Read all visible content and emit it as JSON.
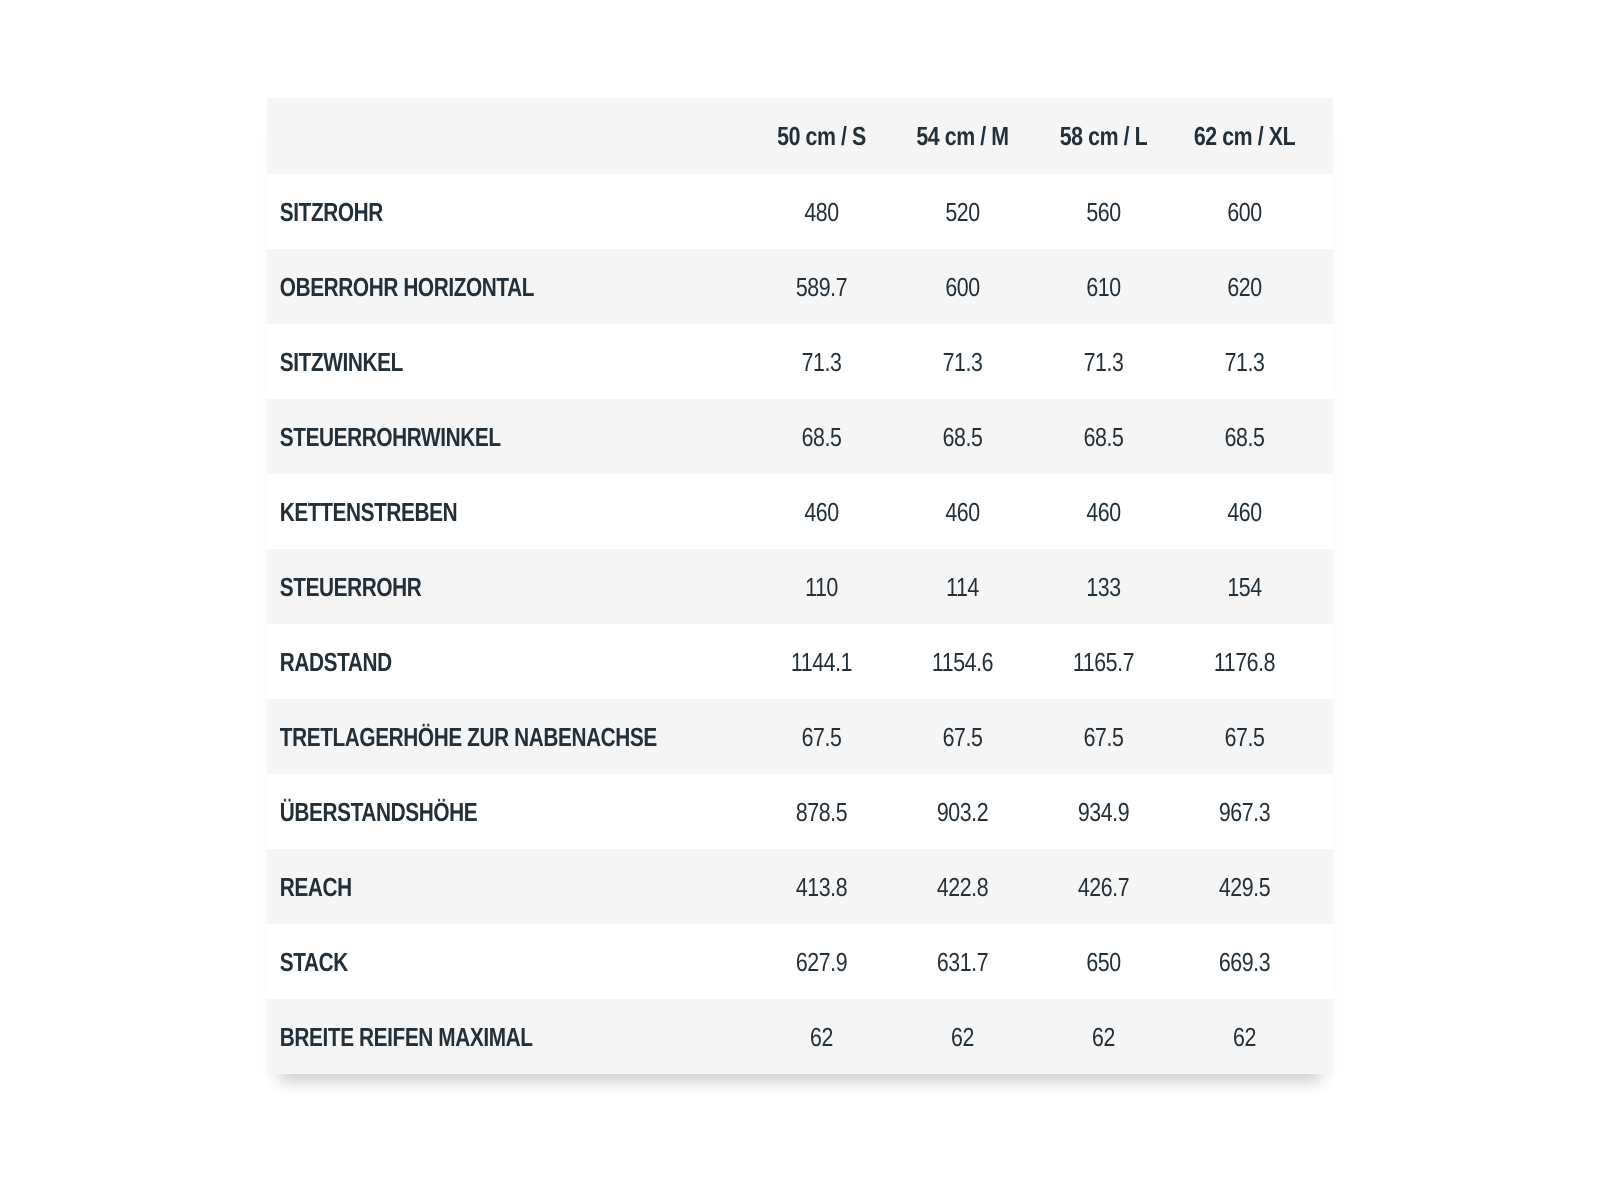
{
  "chart_data": {
    "type": "table",
    "title": "",
    "columns": [
      "50 cm / S",
      "54 cm / M",
      "58 cm / L",
      "62 cm / XL"
    ],
    "rows": [
      {
        "label": "SITZROHR",
        "values": [
          "480",
          "520",
          "560",
          "600"
        ]
      },
      {
        "label": "OBERROHR HORIZONTAL",
        "values": [
          "589.7",
          "600",
          "610",
          "620"
        ]
      },
      {
        "label": "SITZWINKEL",
        "values": [
          "71.3",
          "71.3",
          "71.3",
          "71.3"
        ]
      },
      {
        "label": "STEUERROHRWINKEL",
        "values": [
          "68.5",
          "68.5",
          "68.5",
          "68.5"
        ]
      },
      {
        "label": "KETTENSTREBEN",
        "values": [
          "460",
          "460",
          "460",
          "460"
        ]
      },
      {
        "label": "STEUERROHR",
        "values": [
          "110",
          "114",
          "133",
          "154"
        ]
      },
      {
        "label": "RADSTAND",
        "values": [
          "1144.1",
          "1154.6",
          "1165.7",
          "1176.8"
        ]
      },
      {
        "label": "TRETLAGERHÖHE ZUR NABENACHSE",
        "values": [
          "67.5",
          "67.5",
          "67.5",
          "67.5"
        ]
      },
      {
        "label": "ÜBERSTANDSHÖHE",
        "values": [
          "878.5",
          "903.2",
          "934.9",
          "967.3"
        ]
      },
      {
        "label": "REACH",
        "values": [
          "413.8",
          "422.8",
          "426.7",
          "429.5"
        ]
      },
      {
        "label": "STACK",
        "values": [
          "627.9",
          "631.7",
          "650",
          "669.3"
        ]
      },
      {
        "label": "BREITE REIFEN MAXIMAL",
        "values": [
          "62",
          "62",
          "62",
          "62"
        ]
      }
    ],
    "layout": {
      "striped": true,
      "header_background": "#f5f5f6",
      "stripe_background": "#f5f5f6",
      "text_color": "#233039",
      "background": "#ffffff"
    }
  }
}
